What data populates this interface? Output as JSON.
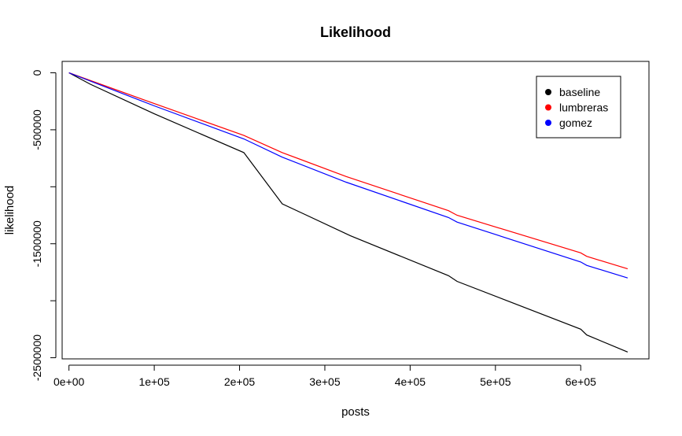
{
  "chart_data": {
    "type": "line",
    "title": "Likelihood",
    "xlabel": "posts",
    "ylabel": "likelihood",
    "xlim": [
      -8000,
      680000
    ],
    "ylim": [
      -2510000,
      100000
    ],
    "x_ticks": [
      0,
      100000,
      200000,
      300000,
      400000,
      500000,
      600000
    ],
    "x_tick_labels": [
      "0e+00",
      "1e+05",
      "2e+05",
      "3e+05",
      "4e+05",
      "5e+05",
      "6e+05"
    ],
    "y_ticks": [
      0,
      -500000,
      -1000000,
      -1500000,
      -2000000,
      -2500000
    ],
    "y_tick_labels": [
      "0",
      "-500000",
      "",
      "-1500000",
      "",
      "-2500000"
    ],
    "grid": false,
    "legend_position": "top-right",
    "series": [
      {
        "name": "baseline",
        "color": "#000000",
        "points": [
          [
            0,
            0
          ],
          [
            25000,
            -100000
          ],
          [
            100000,
            -360000
          ],
          [
            205000,
            -700000
          ],
          [
            250000,
            -1150000
          ],
          [
            330000,
            -1430000
          ],
          [
            445000,
            -1780000
          ],
          [
            455000,
            -1830000
          ],
          [
            600000,
            -2250000
          ],
          [
            607000,
            -2300000
          ],
          [
            655000,
            -2450000
          ]
        ]
      },
      {
        "name": "lumbreras",
        "color": "#ff0000",
        "points": [
          [
            0,
            0
          ],
          [
            100000,
            -270000
          ],
          [
            205000,
            -550000
          ],
          [
            250000,
            -700000
          ],
          [
            325000,
            -910000
          ],
          [
            445000,
            -1210000
          ],
          [
            455000,
            -1250000
          ],
          [
            600000,
            -1580000
          ],
          [
            607000,
            -1610000
          ],
          [
            655000,
            -1720000
          ]
        ]
      },
      {
        "name": "gomez",
        "color": "#0000ff",
        "points": [
          [
            0,
            0
          ],
          [
            100000,
            -290000
          ],
          [
            205000,
            -580000
          ],
          [
            250000,
            -740000
          ],
          [
            325000,
            -960000
          ],
          [
            445000,
            -1270000
          ],
          [
            455000,
            -1310000
          ],
          [
            600000,
            -1660000
          ],
          [
            607000,
            -1690000
          ],
          [
            655000,
            -1800000
          ]
        ]
      }
    ]
  }
}
